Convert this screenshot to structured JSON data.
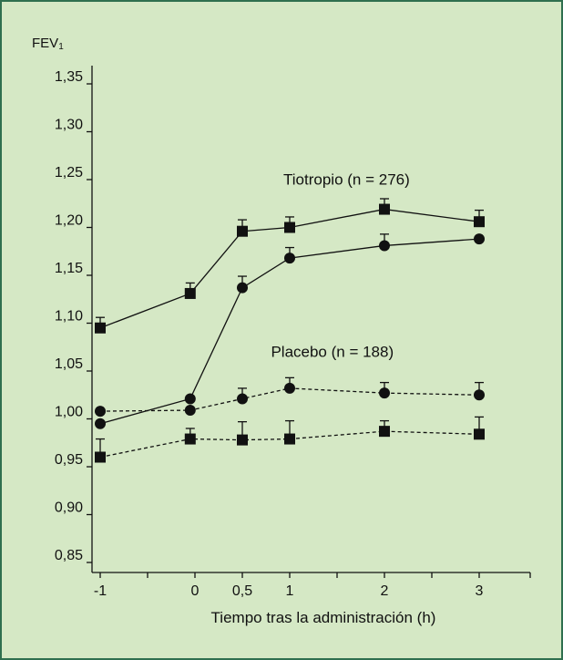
{
  "chart_data": {
    "type": "line",
    "ylabel_main": "FEV",
    "ylabel_sub": "1",
    "xlabel": "Tiempo tras la administración (h)",
    "x_ticks": [
      {
        "value": -1,
        "label": "-1"
      },
      {
        "value": 0,
        "label": "0"
      },
      {
        "value": 0.5,
        "label": "0,5"
      },
      {
        "value": 1,
        "label": "1"
      },
      {
        "value": 2,
        "label": "2"
      },
      {
        "value": 3,
        "label": "3"
      }
    ],
    "x_minor_ticks": [
      -0.5,
      1.5,
      2.5
    ],
    "xlim": [
      -1.1,
      3.5
    ],
    "y_ticks": [
      {
        "value": 0.85,
        "label": "0,85"
      },
      {
        "value": 0.9,
        "label": "0,90"
      },
      {
        "value": 0.95,
        "label": "0,95"
      },
      {
        "value": 1.0,
        "label": "1,00"
      },
      {
        "value": 1.05,
        "label": "1,05"
      },
      {
        "value": 1.1,
        "label": "1,10"
      },
      {
        "value": 1.15,
        "label": "1,15"
      },
      {
        "value": 1.2,
        "label": "1,20"
      },
      {
        "value": 1.25,
        "label": "1,25"
      },
      {
        "value": 1.3,
        "label": "1,30"
      },
      {
        "value": 1.35,
        "label": "1,35"
      }
    ],
    "ylim": [
      0.83,
      1.36
    ],
    "annotations": [
      {
        "text": "Tiotropio (n = 276)",
        "x": 1.6,
        "y": 1.245
      },
      {
        "text": "Placebo (n = 188)",
        "x": 1.45,
        "y": 1.065
      }
    ],
    "series": [
      {
        "group": "Tiotropio",
        "marker": "square",
        "line": "solid",
        "x": [
          -1,
          -0.05,
          0.5,
          1,
          2,
          3
        ],
        "y": [
          1.095,
          1.131,
          1.196,
          1.2,
          1.219,
          1.206
        ],
        "err": [
          0.011,
          0.011,
          0.012,
          0.011,
          0.011,
          0.012
        ]
      },
      {
        "group": "Tiotropio",
        "marker": "circle",
        "line": "solid",
        "x": [
          -1,
          -0.05,
          0.5,
          1,
          2,
          3
        ],
        "y": [
          0.995,
          1.021,
          1.137,
          1.168,
          1.181,
          1.188
        ],
        "err": [
          0,
          0,
          0.012,
          0.011,
          0.012,
          0
        ]
      },
      {
        "group": "Placebo",
        "marker": "circle",
        "line": "dashed",
        "x": [
          -1,
          -0.05,
          0.5,
          1,
          2,
          3
        ],
        "y": [
          1.008,
          1.009,
          1.021,
          1.032,
          1.027,
          1.025
        ],
        "err": [
          0,
          0,
          0.011,
          0.011,
          0.011,
          0.013
        ]
      },
      {
        "group": "Placebo",
        "marker": "square",
        "line": "dashed",
        "x": [
          -1,
          -0.05,
          0.5,
          1,
          2,
          3
        ],
        "y": [
          0.96,
          0.979,
          0.978,
          0.979,
          0.987,
          0.984
        ],
        "err": [
          0.019,
          0.011,
          0.019,
          0.019,
          0.011,
          0.018
        ]
      }
    ],
    "colors": {
      "background": "#d5e8c5",
      "border": "#2f6f4f",
      "ink": "#111111"
    }
  }
}
